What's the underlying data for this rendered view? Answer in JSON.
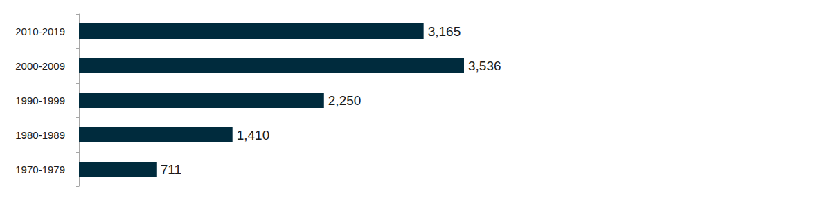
{
  "chart_data": {
    "type": "bar",
    "orientation": "horizontal",
    "categories": [
      "2010-2019",
      "2000-2009",
      "1990-1999",
      "1980-1989",
      "1970-1979"
    ],
    "values": [
      3165,
      3536,
      2250,
      1410,
      711
    ],
    "value_labels": [
      "3,165",
      "3,536",
      "2,250",
      "1,410",
      "711"
    ],
    "color": "#002b3d",
    "xlim": [
      0,
      3536
    ],
    "data_labels": true,
    "tick_labels": "y",
    "grid": false
  }
}
